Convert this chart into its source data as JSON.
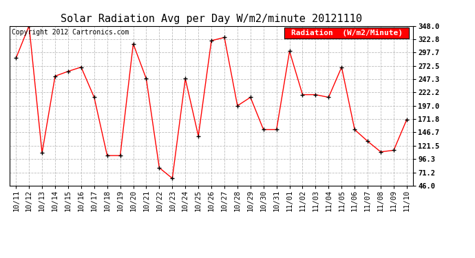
{
  "title": "Solar Radiation Avg per Day W/m2/minute 20121110",
  "copyright": "Copyright 2012 Cartronics.com",
  "legend_label": "Radiation  (W/m2/Minute)",
  "x_labels": [
    "10/11",
    "10/12",
    "10/13",
    "10/14",
    "10/15",
    "10/16",
    "10/17",
    "10/18",
    "10/19",
    "10/20",
    "10/21",
    "10/22",
    "10/23",
    "10/24",
    "10/25",
    "10/26",
    "10/27",
    "10/28",
    "10/29",
    "10/30",
    "10/31",
    "11/01",
    "11/02",
    "11/03",
    "11/04",
    "11/05",
    "11/06",
    "11/07",
    "11/08",
    "11/09",
    "11/10"
  ],
  "y_values": [
    287.0,
    348.0,
    108.0,
    253.0,
    262.0,
    270.0,
    213.0,
    103.0,
    103.0,
    314.0,
    248.0,
    80.0,
    60.0,
    248.0,
    140.0,
    320.0,
    326.0,
    197.0,
    213.0,
    152.0,
    152.0,
    300.0,
    218.0,
    218.0,
    213.0,
    270.0,
    152.0,
    130.0,
    110.0,
    113.0,
    171.0
  ],
  "ylim_min": 46.0,
  "ylim_max": 348.0,
  "yticks": [
    46.0,
    71.2,
    96.3,
    121.5,
    146.7,
    171.8,
    197.0,
    222.2,
    247.3,
    272.5,
    297.7,
    322.8,
    348.0
  ],
  "line_color": "red",
  "marker_color": "black",
  "grid_color": "#bbbbbb",
  "bg_color": "white",
  "legend_bg": "red",
  "legend_text_color": "white",
  "title_fontsize": 11,
  "copyright_fontsize": 7,
  "tick_fontsize": 7.5,
  "legend_fontsize": 8
}
